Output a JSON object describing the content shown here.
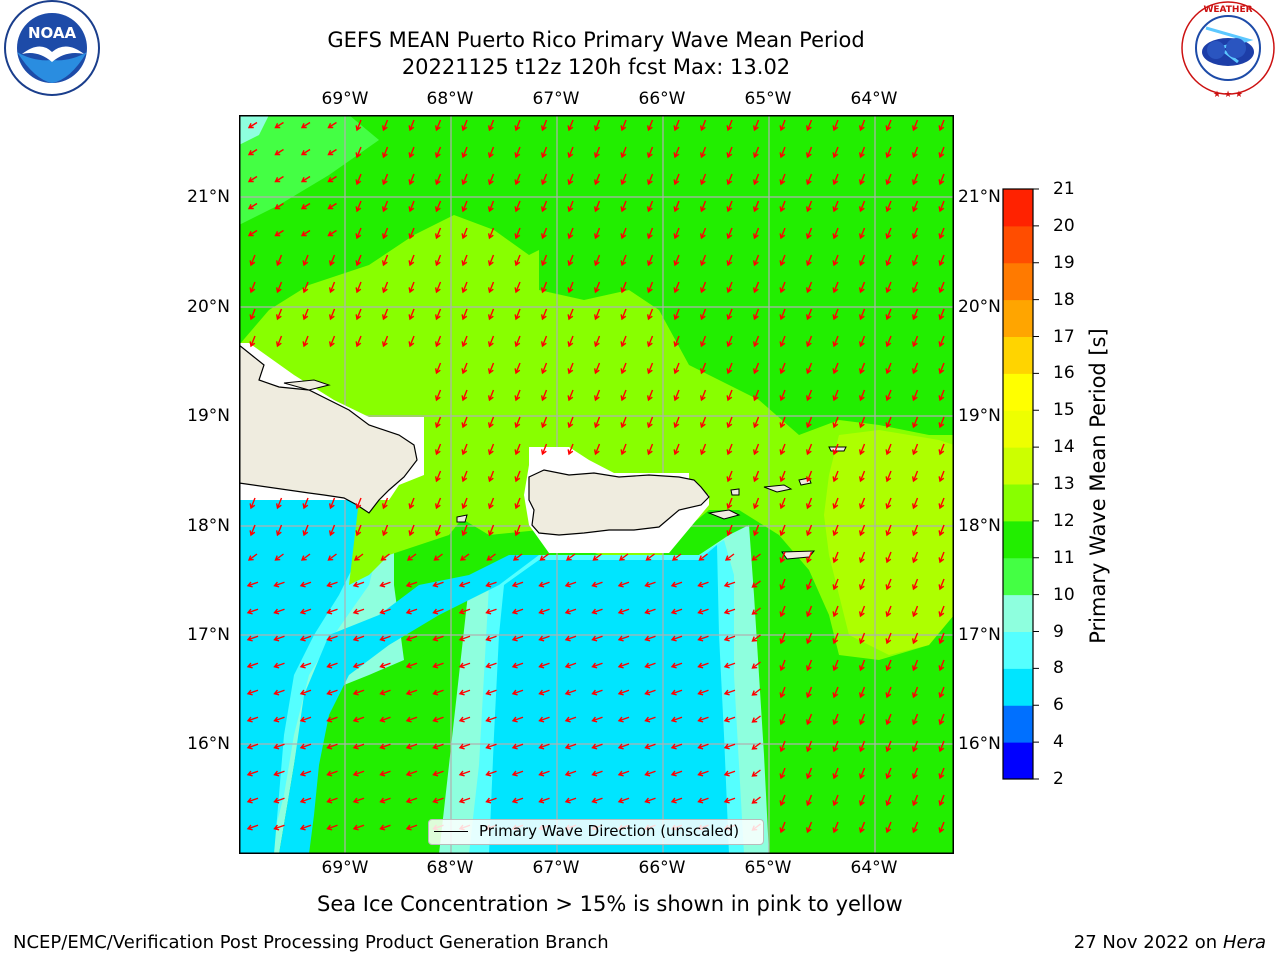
{
  "title": {
    "line1": "GEFS MEAN Puerto Rico Primary Wave Mean Period",
    "line2": "20221125 t12z 120h fcst   Max: 13.02"
  },
  "logos": {
    "left": {
      "text": "NOAA",
      "ring_text": "NATIONAL OCEANIC AND ATMOSPHERIC ADMINISTRATION · U.S. DEPARTMENT OF COMMERCE",
      "icon": "noaa-logo"
    },
    "right": {
      "ring_text": "NATIONAL WEATHER SERVICE",
      "icon": "nws-logo"
    }
  },
  "map": {
    "lon_labels": [
      "69°W",
      "68°W",
      "67°W",
      "66°W",
      "65°W",
      "64°W"
    ],
    "lat_labels": [
      "21°N",
      "20°N",
      "19°N",
      "18°N",
      "17°N",
      "16°N"
    ],
    "legend_label": "Primary Wave Direction (unscaled)",
    "legend_line_color": "#000000",
    "arrow_color": "#ff0000",
    "land_color": "#efecdf",
    "coast_color": "#000000",
    "gridline_color": "#b0b0b0"
  },
  "colorbar": {
    "label": "Primary Wave Mean Period [s]",
    "ticks": [
      "2",
      "4",
      "6",
      "8",
      "9",
      "10",
      "11",
      "12",
      "13",
      "14",
      "15",
      "16",
      "17",
      "18",
      "19",
      "20",
      "21"
    ],
    "colors": [
      "#0000ff",
      "#0070ff",
      "#00e5ff",
      "#55ffff",
      "#8effde",
      "#44ff44",
      "#22ee00",
      "#88ff00",
      "#ccff00",
      "#eeff00",
      "#ffff00",
      "#ffd400",
      "#ffa500",
      "#ff7a00",
      "#ff4d00",
      "#ff2200",
      "#ff0000"
    ]
  },
  "note": "Sea Ice Concentration > 15% is shown in pink to yellow",
  "footer": {
    "left": "NCEP/EMC/Verification Post Processing Product Generation Branch",
    "date": "27 Nov 2022 on",
    "machine": "Hera"
  }
}
